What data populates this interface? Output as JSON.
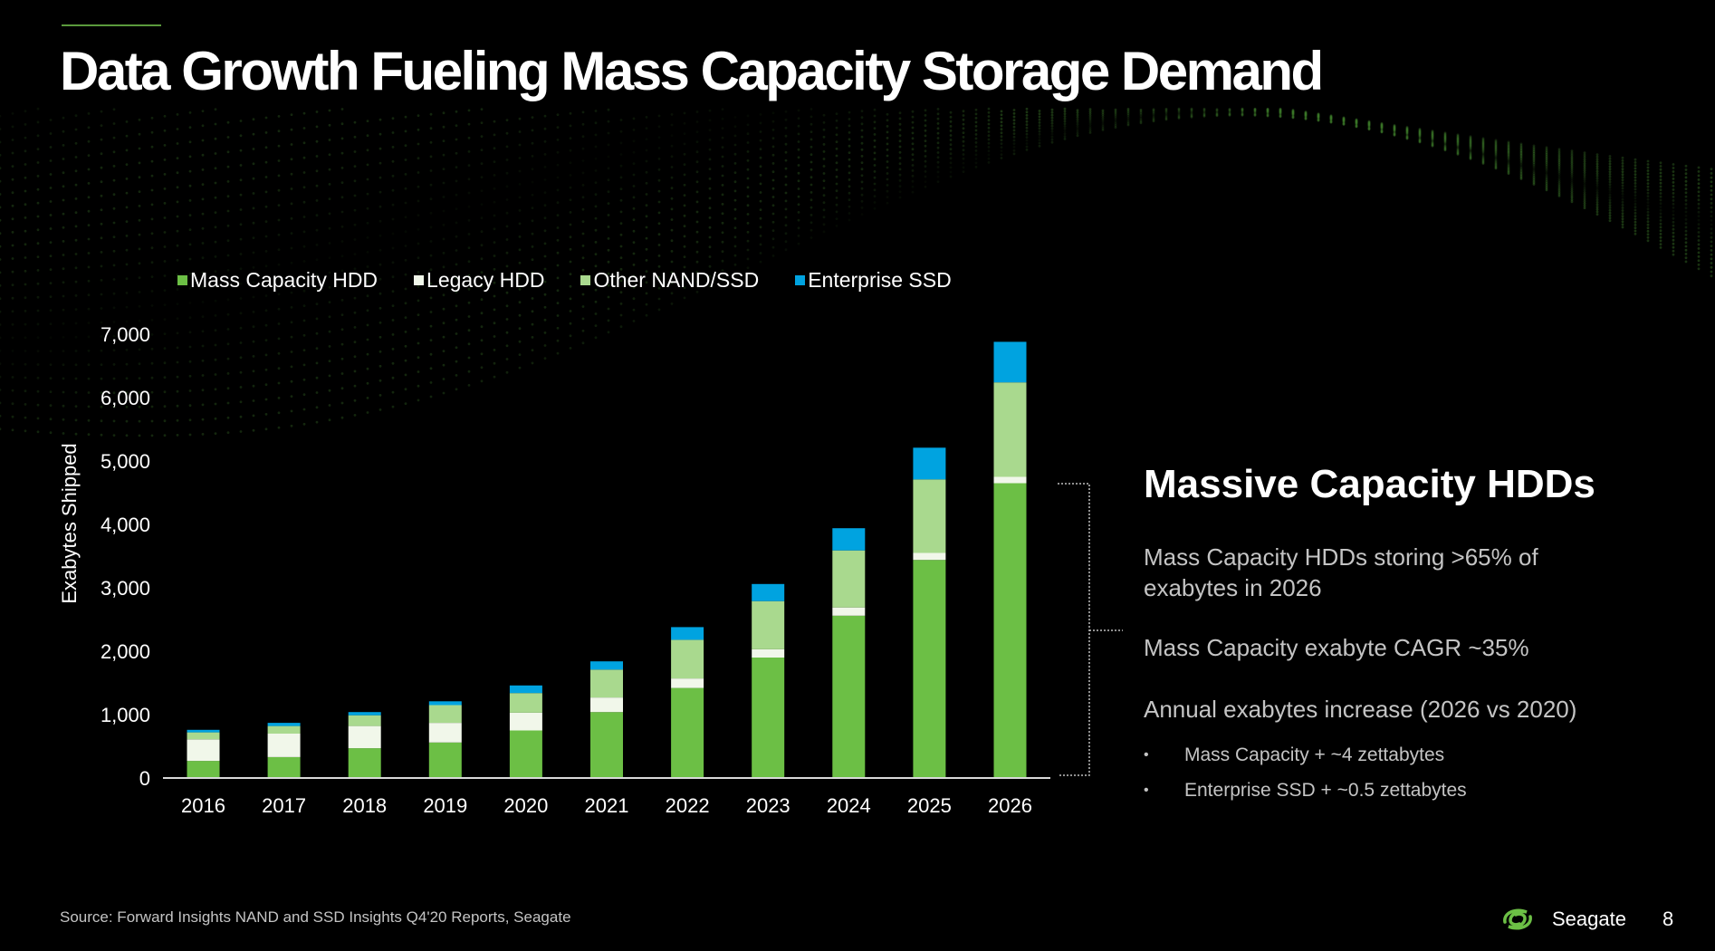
{
  "slide": {
    "title": "Data Growth Fueling Mass Capacity Storage Demand",
    "source": "Source:  Forward Insights NAND and SSD Insights Q4'20 Reports, Seagate",
    "brand": "Seagate",
    "page_number": "8"
  },
  "sidebar": {
    "heading": "Massive Capacity HDDs",
    "point1": "Mass Capacity HDDs storing >65% of exabytes in 2026",
    "point2": "Mass Capacity exabyte CAGR ~35%",
    "point3": "Annual exabytes increase (2026 vs 2020)",
    "bullets": [
      "Mass Capacity + ~4 zettabytes",
      "Enterprise SSD + ~0.5 zettabytes"
    ]
  },
  "colors": {
    "mass_capacity_hdd": "#6cbf45",
    "legacy_hdd": "#f1f7ea",
    "other_nand_ssd": "#a9d98e",
    "enterprise_ssd": "#00a3e0",
    "accent": "#5a9a3c"
  },
  "chart_data": {
    "type": "bar",
    "stacked": true,
    "ylabel": "Exabytes Shipped",
    "xlabel": "",
    "ylim": [
      0,
      7000
    ],
    "yticks": [
      0,
      1000,
      2000,
      3000,
      4000,
      5000,
      6000,
      7000
    ],
    "ytick_labels": [
      "0",
      "1,000",
      "2,000",
      "3,000",
      "4,000",
      "5,000",
      "6,000",
      "7,000"
    ],
    "legend_position": "top",
    "grid": false,
    "categories": [
      "2016",
      "2017",
      "2018",
      "2019",
      "2020",
      "2021",
      "2022",
      "2023",
      "2024",
      "2025",
      "2026"
    ],
    "series": [
      {
        "name": "Mass Capacity HDD",
        "color": "#6cbf45",
        "values": [
          270,
          330,
          470,
          560,
          750,
          1040,
          1420,
          1900,
          2560,
          3440,
          4650
        ]
      },
      {
        "name": "Legacy HDD",
        "color": "#f1f7ea",
        "values": [
          340,
          370,
          350,
          310,
          280,
          230,
          150,
          130,
          130,
          110,
          100
        ]
      },
      {
        "name": "Other NAND/SSD",
        "color": "#a9d98e",
        "values": [
          110,
          120,
          170,
          280,
          310,
          440,
          610,
          760,
          900,
          1160,
          1490
        ]
      },
      {
        "name": "Enterprise SSD",
        "color": "#00a3e0",
        "values": [
          40,
          50,
          50,
          60,
          120,
          130,
          200,
          270,
          350,
          500,
          640
        ]
      }
    ]
  }
}
